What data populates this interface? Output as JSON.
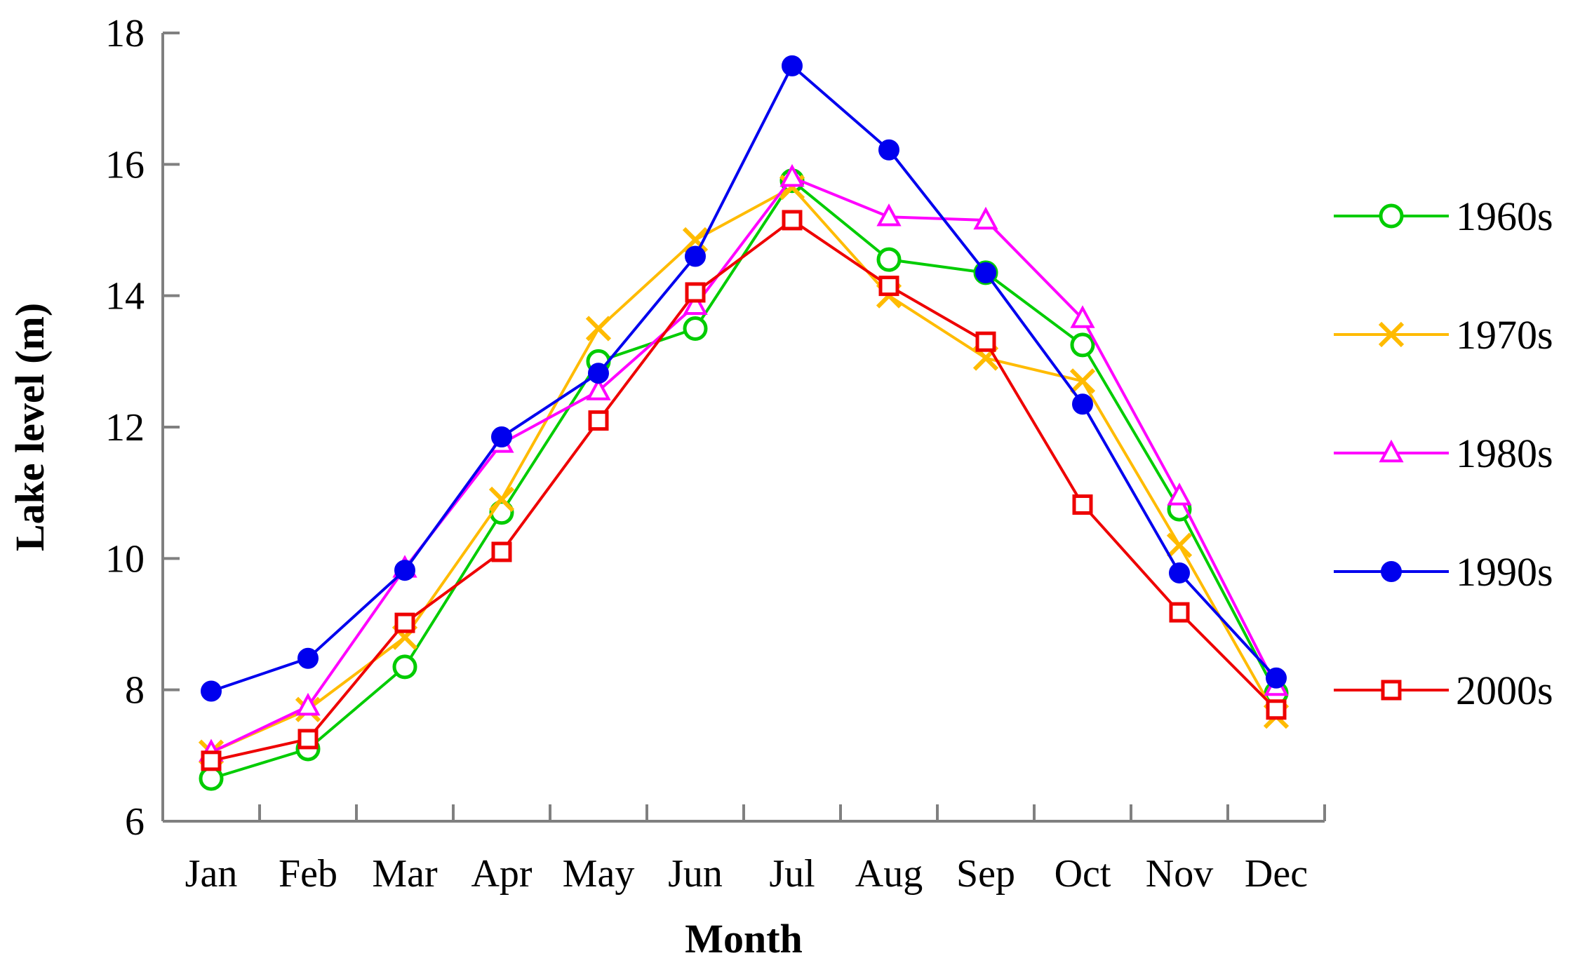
{
  "chart_data": {
    "type": "line",
    "title": "",
    "xlabel": "Month",
    "ylabel": "Lake level (m)",
    "ylim": [
      6,
      18
    ],
    "yticks": [
      6,
      8,
      10,
      12,
      14,
      16,
      18
    ],
    "categories": [
      "Jan",
      "Feb",
      "Mar",
      "Apr",
      "May",
      "Jun",
      "Jul",
      "Aug",
      "Sep",
      "Oct",
      "Nov",
      "Dec"
    ],
    "grid": false,
    "legend_position": "right",
    "series": [
      {
        "name": "1960s",
        "color": "#00cc00",
        "marker": "circle-open",
        "values": [
          6.65,
          7.1,
          8.35,
          10.7,
          13.0,
          13.5,
          15.75,
          14.55,
          14.35,
          13.25,
          10.75,
          7.95
        ]
      },
      {
        "name": "1970s",
        "color": "#ffbb00",
        "marker": "x",
        "values": [
          7.05,
          7.7,
          8.8,
          10.9,
          13.5,
          14.85,
          15.65,
          14.0,
          13.05,
          12.7,
          10.2,
          7.6
        ]
      },
      {
        "name": "1980s",
        "color": "#ff00ff",
        "marker": "triangle-open",
        "values": [
          7.05,
          7.75,
          9.85,
          11.75,
          12.55,
          13.85,
          15.8,
          15.2,
          15.15,
          13.65,
          10.95,
          8.05
        ]
      },
      {
        "name": "1990s",
        "color": "#0000ee",
        "marker": "circle-filled",
        "values": [
          7.98,
          8.48,
          9.82,
          11.85,
          12.82,
          14.6,
          17.5,
          16.22,
          14.35,
          12.35,
          9.78,
          8.18
        ]
      },
      {
        "name": "2000s",
        "color": "#ee0000",
        "marker": "square-open",
        "values": [
          6.92,
          7.25,
          9.02,
          10.1,
          12.1,
          14.05,
          15.15,
          14.15,
          13.3,
          10.82,
          9.18,
          7.7
        ]
      }
    ]
  }
}
